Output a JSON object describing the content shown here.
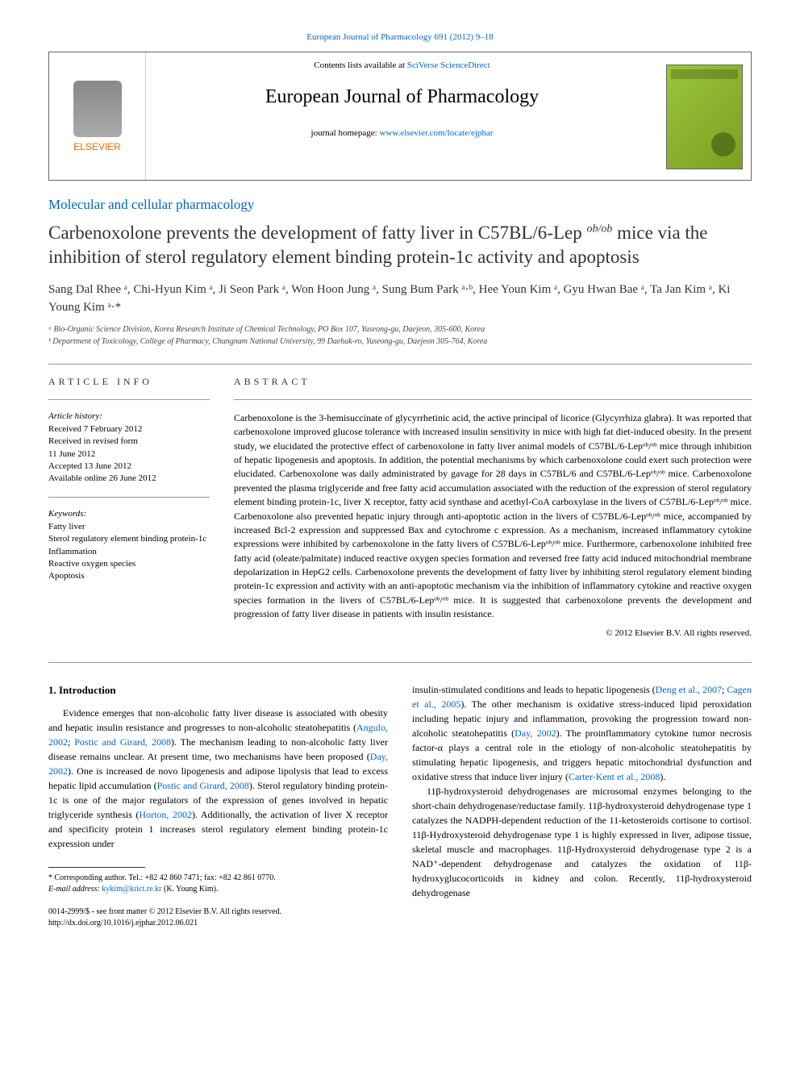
{
  "header": {
    "citation": "European Journal of Pharmacology 691 (2012) 9–18",
    "contents_prefix": "Contents lists available at ",
    "contents_link": "SciVerse ScienceDirect",
    "journal_title": "European Journal of Pharmacology",
    "homepage_prefix": "journal homepage: ",
    "homepage_link": "www.elsevier.com/locate/ejphar",
    "publisher": "ELSEVIER"
  },
  "article": {
    "section": "Molecular and cellular pharmacology",
    "title_pre": "Carbenoxolone prevents the development of fatty liver in C57BL/6-Lep ",
    "title_sup": "ob/ob",
    "title_post": " mice via the inhibition of sterol regulatory element binding protein-1c activity and apoptosis",
    "authors_html": "Sang Dal Rhee ᵃ, Chi-Hyun Kim ᵃ, Ji Seon Park ᵃ, Won Hoon Jung ᵃ, Sung Bum Park ᵃ·ᵇ, Hee Youn Kim ᵃ, Gyu Hwan Bae ᵃ, Ta Jan Kim ᵃ, Ki Young Kim ᵃ·*",
    "affil_a": "ᵃ Bio-Organic Science Division, Korea Research Institute of Chemical Technology, PO Box 107, Yuseong-gu, Daejeon, 305-600, Korea",
    "affil_b": "ᵇ Department of Toxicology, College of Pharmacy, Chungnam National University, 99 Daehak-ro, Yuseong-gu, Daejeon 305-764, Korea"
  },
  "info": {
    "heading": "ARTICLE INFO",
    "history_label": "Article history:",
    "history": "Received 7 February 2012\nReceived in revised form\n11 June 2012\nAccepted 13 June 2012\nAvailable online 26 June 2012",
    "keywords_label": "Keywords:",
    "keywords": "Fatty liver\nSterol regulatory element binding protein-1c\nInflammation\nReactive oxygen species\nApoptosis"
  },
  "abstract": {
    "heading": "ABSTRACT",
    "text": "Carbenoxolone is the 3-hemisuccinate of glycyrrhetinic acid, the active principal of licorice (Glycyrrhiza glabra). It was reported that carbenoxolone improved glucose tolerance with increased insulin sensitivity in mice with high fat diet-induced obesity. In the present study, we elucidated the protective effect of carbenoxolone in fatty liver animal models of C57BL/6-Lepᵒᵇ/ᵒᵇ mice through inhibition of hepatic lipogenesis and apoptosis. In addition, the potential mechanisms by which carbenoxolone could exert such protection were elucidated. Carbenoxolone was daily administrated by gavage for 28 days in C57BL/6 and C57BL/6-Lepᵒᵇ/ᵒᵇ mice. Carbenoxolone prevented the plasma triglyceride and free fatty acid accumulation associated with the reduction of the expression of sterol regulatory element binding protein-1c, liver X receptor, fatty acid synthase and acethyl-CoA carboxylase in the livers of C57BL/6-Lepᵒᵇ/ᵒᵇ mice. Carbenoxolone also prevented hepatic injury through anti-apoptotic action in the livers of C57BL/6-Lepᵒᵇ/ᵒᵇ mice, accompanied by increased Bcl-2 expression and suppressed Bax and cytochrome c expression. As a mechanism, increased inflammatory cytokine expressions were inhibited by carbenoxolone in the fatty livers of C57BL/6-Lepᵒᵇ/ᵒᵇ mice. Furthermore, carbenoxolone inhibited free fatty acid (oleate/palmitate) induced reactive oxygen species formation and reversed free fatty acid induced mitochondrial membrane depolarization in HepG2 cells. Carbenoxolone prevents the development of fatty liver by inhibiting sterol regulatory element binding protein-1c expression and activity with an anti-apoptotic mechanism via the inhibition of inflammatory cytokine and reactive oxygen species formation in the livers of C57BL/6-Lepᵒᵇ/ᵒᵇ mice. It is suggested that carbenoxolone prevents the development and progression of fatty liver disease in patients with insulin resistance.",
    "copyright": "© 2012 Elsevier B.V. All rights reserved."
  },
  "body": {
    "heading": "1. Introduction",
    "col1_p1a": "Evidence emerges that non-alcoholic fatty liver disease is associated with obesity and hepatic insulin resistance and progresses to non-alcoholic steatohepatitis (",
    "ref1": "Angulo, 2002",
    "col1_p1b": "; ",
    "ref2": "Postic and Girard, 2008",
    "col1_p1c": "). The mechanism leading to non-alcoholic fatty liver disease remains unclear. At present time, two mechanisms have been proposed (",
    "ref3": "Day, 2002",
    "col1_p1d": "). One is increased de novo lipogenesis and adipose lipolysis that lead to excess hepatic lipid accumulation (",
    "ref4": "Postic and Girard, 2008",
    "col1_p1e": "). Sterol regulatory binding protein-1c is one of the major regulators of the expression of genes involved in hepatic triglyceride synthesis (",
    "ref5": "Horton, 2002",
    "col1_p1f": "). Additionally, the activation of liver X receptor and specificity protein 1 increases sterol regulatory element binding protein-1c expression under",
    "col2_p1a": "insulin-stimulated conditions and leads to hepatic lipogenesis (",
    "ref6": "Deng et al., 2007",
    "col2_p1b": "; ",
    "ref7": "Cagen et al., 2005",
    "col2_p1c": "). The other mechanism is oxidative stress-induced lipid peroxidation including hepatic injury and inflammation, provoking the progression toward non-alcoholic steatohepatitis (",
    "ref8": "Day, 2002",
    "col2_p1d": "). The proinflammatory cytokine tumor necrosis factor-α plays a central role in the etiology of non-alcoholic steatohepatitis by stimulating hepatic lipogenesis, and triggers hepatic mitochondrial dysfunction and oxidative stress that induce liver injury (",
    "ref9": "Carter-Kent et al., 2008",
    "col2_p1e": ").",
    "col2_p2": "11β-hydroxysteroid dehydrogenases are microsomal enzymes belonging to the short-chain dehydrogenase/reductase family. 11β-hydroxysteroid dehydrogenase type 1 catalyzes the NADPH-dependent reduction of the 11-ketosteroids cortisone to cortisol. 11β-Hydroxysteroid dehydrogenase type 1 is highly expressed in liver, adipose tissue, skeletal muscle and macrophages. 11β-Hydroxysteroid dehydrogenase type 2 is a NAD⁺-dependent dehydrogenase and catalyzes the oxidation of 11β-hydroxyglucocorticoids in kidney and colon. Recently, 11β-hydroxysteroid dehydrogenase"
  },
  "footnote": {
    "corresp": "* Corresponding author. Tel.: +82 42 860 7471; fax: +82 42 861 0770.",
    "email_label": "E-mail address: ",
    "email": "kykim@krict.re.kr",
    "email_name": " (K. Young Kim)."
  },
  "doi": {
    "line1": "0014-2999/$ - see front matter © 2012 Elsevier B.V. All rights reserved.",
    "line2": "http://dx.doi.org/10.1016/j.ejphar.2012.06.021"
  }
}
